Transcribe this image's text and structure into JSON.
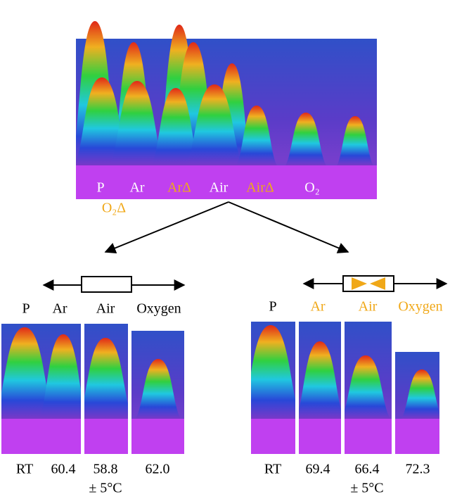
{
  "top": {
    "labels": [
      "P",
      "Ar",
      "ArΔ",
      "Air",
      "AirΔ",
      "O₂",
      "O₂Δ"
    ]
  },
  "left": {
    "labels": [
      "P",
      "Ar",
      "Air",
      "Oxygen"
    ],
    "temperatures": [
      "RT",
      "60.4",
      "58.8",
      "62.0"
    ],
    "tolerance": "± 5°C"
  },
  "right": {
    "labels": [
      "P",
      "Ar",
      "Air",
      "Oxygen"
    ],
    "temperatures": [
      "RT",
      "69.4",
      "66.4",
      "72.3"
    ],
    "tolerance": "± 5°C"
  }
}
